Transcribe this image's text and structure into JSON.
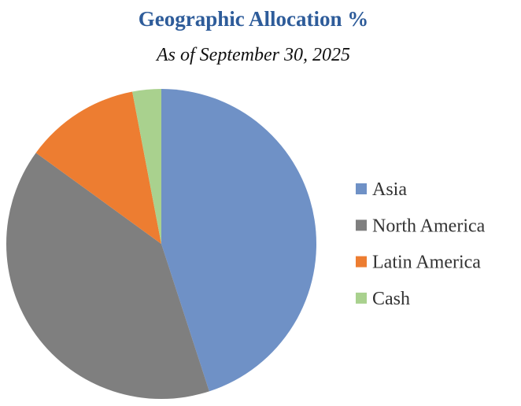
{
  "chart_data": {
    "type": "pie",
    "title": "Geographic Allocation %",
    "subtitle": "As of September 30, 2025",
    "categories": [
      "Asia",
      "North America",
      "Latin America",
      "Cash"
    ],
    "values": [
      45,
      40,
      12,
      3
    ],
    "colors": [
      "#6f91c6",
      "#7f7f7f",
      "#ed7d31",
      "#a9d18e"
    ],
    "legend": "right"
  }
}
